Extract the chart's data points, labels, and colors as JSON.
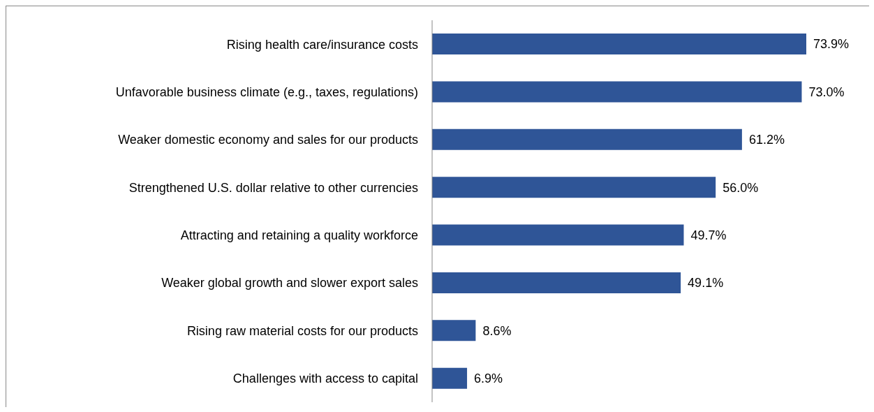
{
  "chart_data": {
    "type": "bar",
    "orientation": "horizontal",
    "categories": [
      "Rising health care/insurance costs",
      "Unfavorable business climate (e.g., taxes, regulations)",
      "Weaker domestic economy and sales for our products",
      "Strengthened U.S. dollar relative to other currencies",
      "Attracting and retaining a quality workforce",
      "Weaker global growth and slower export sales",
      "Rising raw material costs for our products",
      "Challenges with access to capital"
    ],
    "values": [
      73.9,
      73.0,
      61.2,
      56.0,
      49.7,
      49.1,
      8.6,
      6.9
    ],
    "value_labels": [
      "73.9%",
      "73.0%",
      "61.2%",
      "56.0%",
      "49.7%",
      "49.1%",
      "8.6%",
      "6.9%"
    ],
    "color": "#2f5597"
  }
}
